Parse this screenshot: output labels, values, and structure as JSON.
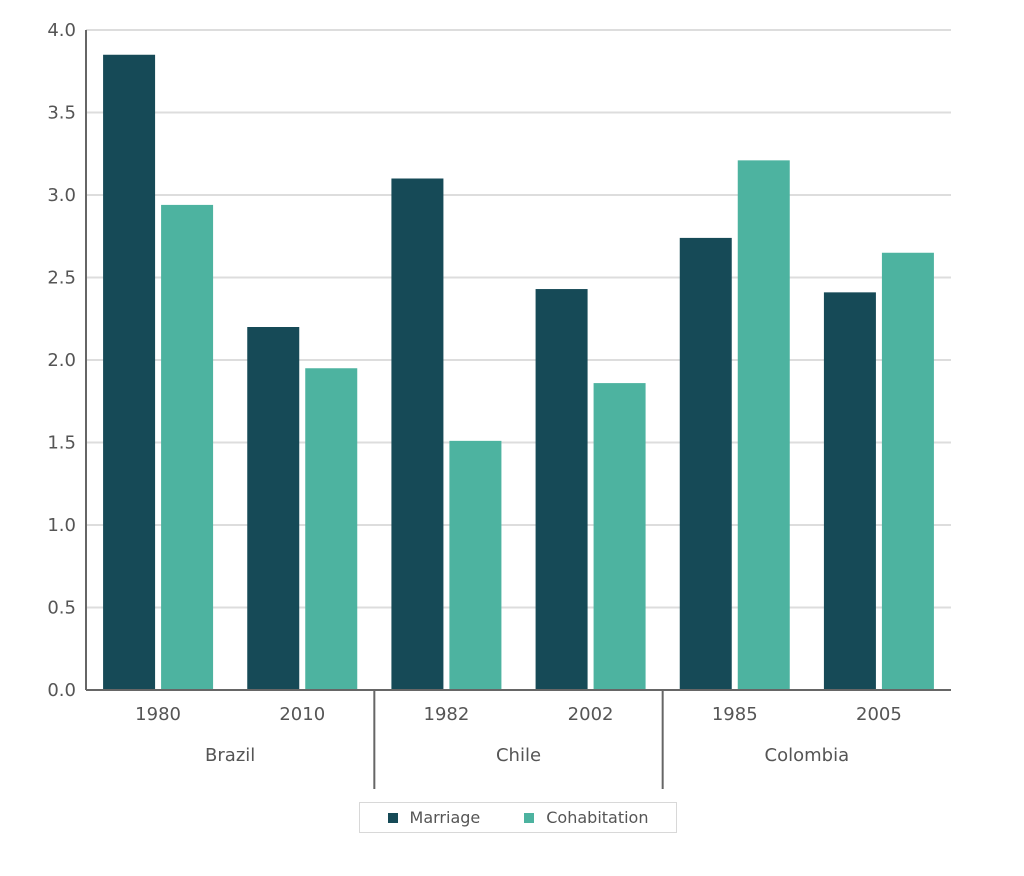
{
  "chart_data": {
    "type": "bar",
    "title": "",
    "xlabel": "",
    "ylabel": "",
    "ylim": [
      0,
      4.0
    ],
    "yticks": [
      "0.0",
      "0.5",
      "1.0",
      "1.5",
      "2.0",
      "2.5",
      "3.0",
      "3.5",
      "4.0"
    ],
    "groups": [
      {
        "name": "Brazil",
        "categories": [
          "1980",
          "2010"
        ]
      },
      {
        "name": "Chile",
        "categories": [
          "1982",
          "2002"
        ]
      },
      {
        "name": "Colombia",
        "categories": [
          "1985",
          "2005"
        ]
      }
    ],
    "categories": [
      "1980",
      "2010",
      "1982",
      "2002",
      "1985",
      "2005"
    ],
    "series": [
      {
        "name": "Marriage",
        "color": "#164a57",
        "values": [
          3.85,
          2.2,
          3.1,
          2.43,
          2.74,
          2.41
        ]
      },
      {
        "name": "Cohabitation",
        "color": "#4db3a0",
        "values": [
          2.94,
          1.95,
          1.51,
          1.86,
          3.21,
          2.65
        ]
      }
    ],
    "grid": true,
    "legend_position": "bottom"
  }
}
